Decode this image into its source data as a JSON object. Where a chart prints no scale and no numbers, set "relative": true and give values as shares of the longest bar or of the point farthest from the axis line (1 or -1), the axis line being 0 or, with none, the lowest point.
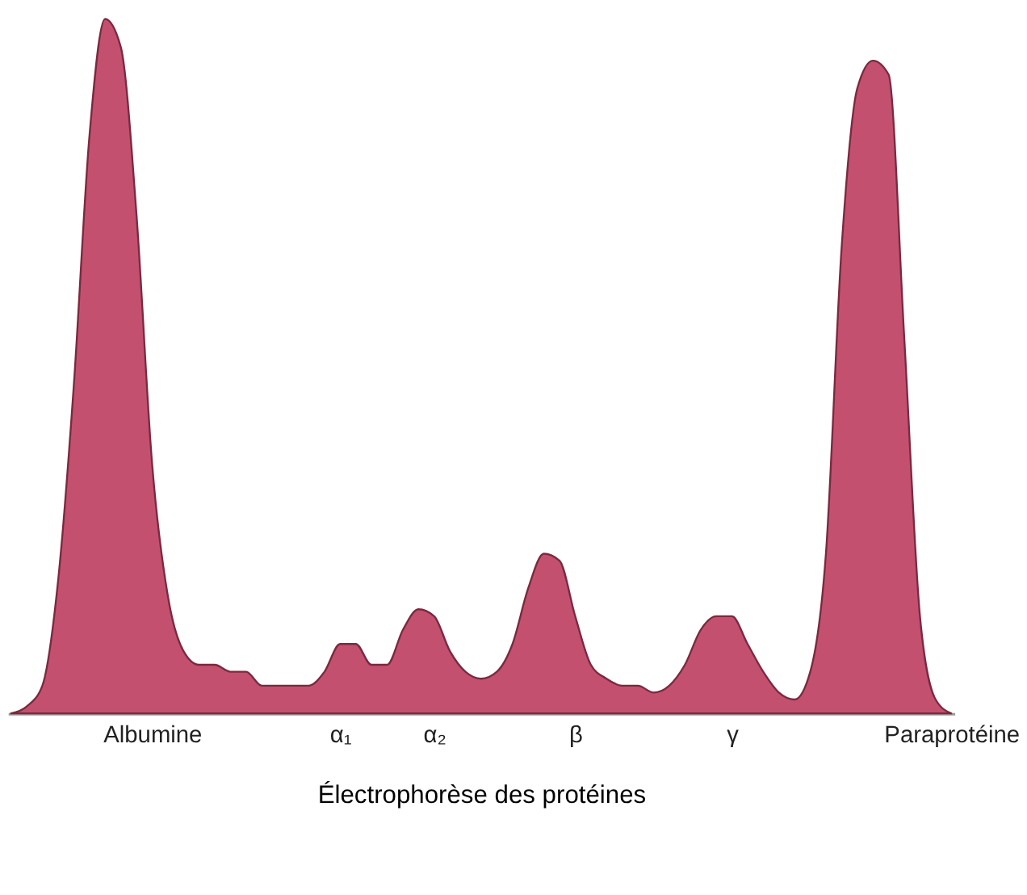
{
  "chart_data": {
    "type": "area",
    "relative": true,
    "xlabel": "Électrophorèse des protéines",
    "grid": false,
    "categories": [
      null,
      null,
      null,
      null,
      null,
      null,
      null,
      null,
      null,
      "Albumine",
      null,
      null,
      null,
      null,
      null,
      null,
      null,
      null,
      null,
      null,
      null,
      "α₁",
      null,
      null,
      null,
      null,
      null,
      "α₂",
      null,
      null,
      null,
      null,
      null,
      null,
      null,
      null,
      "β",
      null,
      null,
      null,
      null,
      null,
      null,
      null,
      null,
      null,
      "γ",
      null,
      null,
      null,
      null,
      null,
      null,
      null,
      null,
      null,
      null,
      null,
      null,
      null,
      "Paraprotéine"
    ],
    "series": [
      {
        "color": "#c4506f",
        "values": [
          0,
          0.01,
          0.04,
          0.19,
          0.47,
          0.83,
          1.0,
          0.96,
          0.72,
          0.36,
          0.17,
          0.09,
          0.07,
          0.07,
          0.06,
          0.06,
          0.04,
          0.04,
          0.04,
          0.04,
          0.06,
          0.1,
          0.1,
          0.07,
          0.07,
          0.12,
          0.15,
          0.14,
          0.09,
          0.06,
          0.05,
          0.06,
          0.1,
          0.18,
          0.23,
          0.22,
          0.14,
          0.07,
          0.05,
          0.04,
          0.04,
          0.03,
          0.04,
          0.07,
          0.12,
          0.14,
          0.14,
          0.1,
          0.06,
          0.03,
          0.02,
          0.06,
          0.23,
          0.67,
          0.9,
          0.94,
          0.92,
          0.54,
          0.14,
          0.02,
          0
        ]
      }
    ]
  }
}
